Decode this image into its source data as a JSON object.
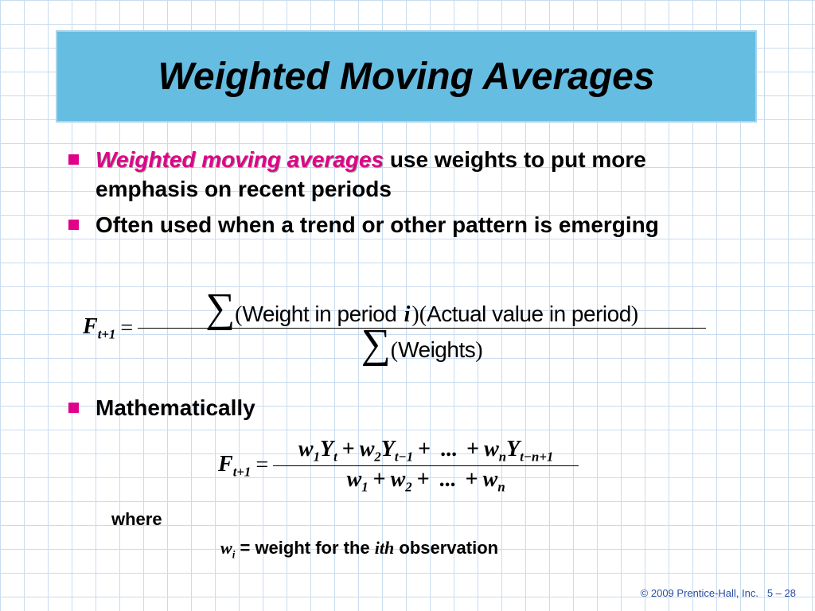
{
  "title": "Weighted Moving Averages",
  "bullets": [
    {
      "emphasis": "Weighted moving averages",
      "text": "use weights to put more emphasis on recent periods"
    },
    {
      "text": "Often used when a trend or other pattern is emerging"
    },
    {
      "text": "Mathematically"
    }
  ],
  "formula1": {
    "lhs": [
      "F",
      "t+1"
    ],
    "equals": "=",
    "numerator": [
      "∑",
      "(",
      "Weight in period ",
      "i",
      ")(",
      "Actual value in period",
      ")"
    ],
    "denominator": [
      "∑",
      "(",
      "Weights",
      ")"
    ]
  },
  "formula2": {
    "lhs": [
      "F",
      "t+1"
    ],
    "equals": "=",
    "numerator": [
      [
        "w",
        "1"
      ],
      [
        "Y",
        "t"
      ],
      "+",
      [
        "w",
        "2"
      ],
      [
        "Y",
        "t−1"
      ],
      "+",
      "...",
      "+",
      [
        "w",
        "n"
      ],
      [
        "Y",
        "t−n+1"
      ]
    ],
    "denominator": [
      [
        "w",
        "1"
      ],
      "+",
      [
        "w",
        "2"
      ],
      "+",
      "...",
      "+",
      [
        "w",
        "n"
      ]
    ]
  },
  "where": "where",
  "definition": {
    "symbol": [
      "w",
      "i"
    ],
    "text": "= weight for the",
    "italic": "ith",
    "after": "observation"
  },
  "footer": {
    "copyright": "© 2009 Prentice-Hall, Inc.",
    "page": "5 – 28"
  }
}
